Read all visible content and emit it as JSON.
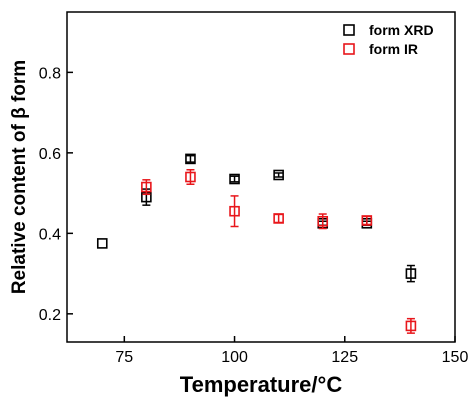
{
  "chart_data": {
    "type": "scatter",
    "xlabel": "Temperature/°C",
    "ylabel": "Relative content of  β form",
    "xlim": [
      62,
      150
    ],
    "ylim": [
      0.13,
      0.95
    ],
    "x_ticks": [
      75,
      100,
      125,
      150
    ],
    "y_ticks": [
      0.2,
      0.4,
      0.6,
      0.8
    ],
    "x_tick_labels": [
      "75",
      "100",
      "125",
      "150"
    ],
    "y_tick_labels": [
      "0.2",
      "0.4",
      "0.6",
      "0.8"
    ],
    "legend_position": "top-right",
    "series": [
      {
        "name": "form XRD",
        "color": "#000000",
        "marker": "open-square",
        "points": [
          {
            "x": 70,
            "y": 0.375,
            "err": 0.0
          },
          {
            "x": 80,
            "y": 0.49,
            "err": 0.02
          },
          {
            "x": 90,
            "y": 0.585,
            "err": 0.008
          },
          {
            "x": 100,
            "y": 0.535,
            "err": 0.007
          },
          {
            "x": 110,
            "y": 0.545,
            "err": 0.005
          },
          {
            "x": 120,
            "y": 0.425,
            "err": 0.005
          },
          {
            "x": 130,
            "y": 0.425,
            "err": 0.005
          },
          {
            "x": 140,
            "y": 0.3,
            "err": 0.02
          }
        ]
      },
      {
        "name": "form IR",
        "color": "#e8161b",
        "marker": "open-square",
        "points": [
          {
            "x": 80,
            "y": 0.515,
            "err": 0.018
          },
          {
            "x": 90,
            "y": 0.54,
            "err": 0.018
          },
          {
            "x": 100,
            "y": 0.455,
            "err": 0.038
          },
          {
            "x": 110,
            "y": 0.437,
            "err": 0.01
          },
          {
            "x": 120,
            "y": 0.43,
            "err": 0.018
          },
          {
            "x": 130,
            "y": 0.432,
            "err": 0.01
          },
          {
            "x": 140,
            "y": 0.17,
            "err": 0.018
          }
        ]
      }
    ]
  }
}
